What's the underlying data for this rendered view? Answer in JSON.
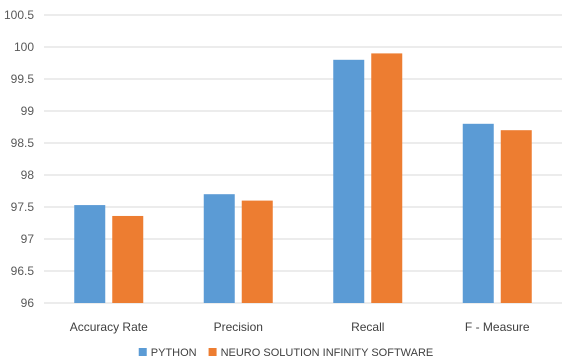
{
  "chart_data": {
    "type": "bar",
    "title": "",
    "xlabel": "",
    "ylabel": "",
    "categories": [
      "Accuracy Rate",
      "Precision",
      "Recall",
      "F - Measure"
    ],
    "series": [
      {
        "name": "PYTHON",
        "color": "#5b9bd5",
        "values": [
          97.53,
          97.7,
          99.8,
          98.8
        ]
      },
      {
        "name": "NEURO SOLUTION INFINITY SOFTWARE",
        "color": "#ed7d31",
        "values": [
          97.36,
          97.6,
          99.9,
          98.7
        ]
      }
    ],
    "ylim": [
      96,
      100.5
    ],
    "yticks": [
      "96",
      "96.5",
      "97",
      "97.5",
      "98",
      "98.5",
      "99",
      "99.5",
      "100",
      "100.5"
    ],
    "grid": true,
    "legend_position": "bottom"
  }
}
